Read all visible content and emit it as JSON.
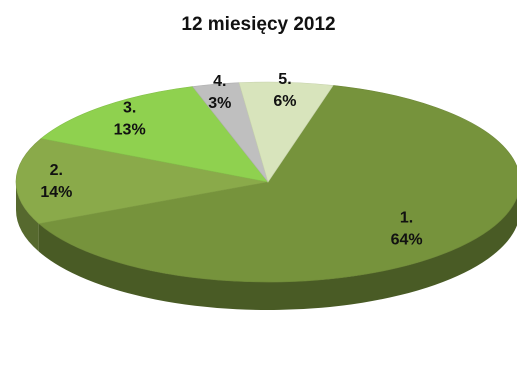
{
  "chart_data": {
    "type": "pie",
    "title": "12 miesięcy 2012",
    "slices": [
      {
        "category": "1.",
        "value": 64,
        "value_label": "64%",
        "color": "#76933c"
      },
      {
        "category": "2.",
        "value": 14,
        "value_label": "14%",
        "color": "#8aaa4a"
      },
      {
        "category": "3.",
        "value": 13,
        "value_label": "13%",
        "color": "#8fd14f"
      },
      {
        "category": "4.",
        "value": 3,
        "value_label": "3%",
        "color": "#bfbfbf"
      },
      {
        "category": "5.",
        "value": 6,
        "value_label": "6%",
        "color": "#d8e4bc"
      }
    ],
    "style": "3d-pie",
    "legend": "none"
  }
}
